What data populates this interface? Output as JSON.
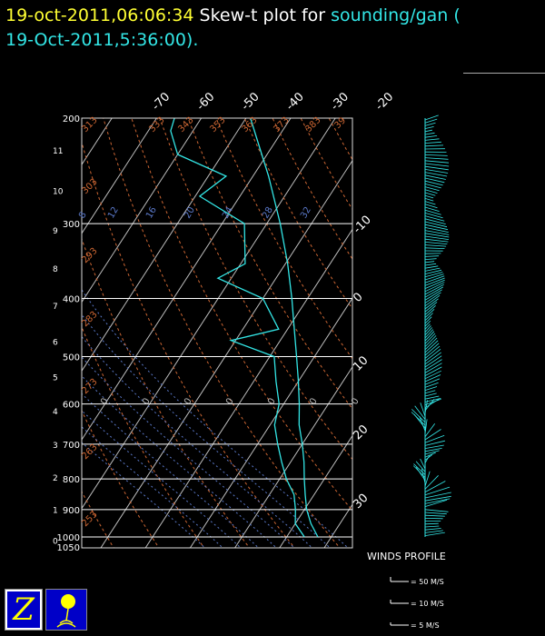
{
  "title": {
    "time": "19-oct-2011,06:06:34",
    "text": "Skew-t plot for",
    "source": "sounding/gan (",
    "date": "19-Oct-2011,5:36:00)",
    "period": "."
  },
  "winds": {
    "header": "WINDS PROFILE",
    "legend": [
      "= 50 M/S",
      "= 10 M/S",
      "= 5 M/S"
    ]
  },
  "logos": {
    "left_letter": "Z"
  },
  "colors": {
    "temperature": "#33e6e6",
    "isotherm": "#bdbdbd",
    "dry_adiabat": "#cc6633",
    "moist_adiabat": "#5a78c8",
    "title_yellow": "#ffff33",
    "title_cyan": "#33e6e6"
  },
  "chart_data": {
    "type": "skew-t",
    "pressure_ticks": [
      200,
      300,
      400,
      500,
      600,
      700,
      800,
      900,
      1000,
      1050
    ],
    "pressure_range": [
      1050,
      200
    ],
    "height_ticks_km": [
      0,
      1,
      2,
      3,
      4,
      5,
      6,
      7,
      8,
      9,
      10,
      11
    ],
    "isotherm_labels_top": [
      "-70",
      "-60",
      "-50",
      "-40",
      "-30",
      "-20"
    ],
    "isotherm_labels_right": [
      "-10",
      "0",
      "10",
      "20",
      "30"
    ],
    "dry_adiabat_labels": [
      "313",
      "333",
      "343",
      "353",
      "363",
      "373",
      "383",
      "39",
      "303",
      "293",
      "283",
      "273",
      "263",
      "253"
    ],
    "moist_adiabat_labels": [
      "8",
      "12",
      "16",
      "20",
      "24",
      "28",
      "32"
    ],
    "mixing_ratio_labels": [
      "0",
      "0",
      "0",
      "0",
      "0",
      "0",
      "0"
    ],
    "temperature_profile": [
      {
        "p": 1000,
        "t": 27.0
      },
      {
        "p": 950,
        "t": 23.5
      },
      {
        "p": 900,
        "t": 20.5
      },
      {
        "p": 850,
        "t": 18.0
      },
      {
        "p": 800,
        "t": 15.5
      },
      {
        "p": 750,
        "t": 13.0
      },
      {
        "p": 700,
        "t": 10.0
      },
      {
        "p": 650,
        "t": 6.5
      },
      {
        "p": 600,
        "t": 3.5
      },
      {
        "p": 550,
        "t": 0.0
      },
      {
        "p": 500,
        "t": -4.0
      },
      {
        "p": 450,
        "t": -8.5
      },
      {
        "p": 400,
        "t": -13.5
      },
      {
        "p": 350,
        "t": -19.5
      },
      {
        "p": 300,
        "t": -27.0
      },
      {
        "p": 250,
        "t": -36.5
      },
      {
        "p": 200,
        "t": -49.0
      }
    ],
    "dewpoint_profile": [
      {
        "p": 1000,
        "t": 24.0
      },
      {
        "p": 950,
        "t": 20.0
      },
      {
        "p": 900,
        "t": 18.0
      },
      {
        "p": 850,
        "t": 15.5
      },
      {
        "p": 800,
        "t": 11.5
      },
      {
        "p": 750,
        "t": 8.0
      },
      {
        "p": 700,
        "t": 4.5
      },
      {
        "p": 650,
        "t": 1.0
      },
      {
        "p": 600,
        "t": -1.0
      },
      {
        "p": 550,
        "t": -5.0
      },
      {
        "p": 500,
        "t": -9.0
      },
      {
        "p": 470,
        "t": -21.0
      },
      {
        "p": 450,
        "t": -12.0
      },
      {
        "p": 400,
        "t": -20.0
      },
      {
        "p": 370,
        "t": -33.0
      },
      {
        "p": 350,
        "t": -29.0
      },
      {
        "p": 300,
        "t": -35.0
      },
      {
        "p": 270,
        "t": -49.0
      },
      {
        "p": 250,
        "t": -46.0
      },
      {
        "p": 230,
        "t": -60.0
      },
      {
        "p": 210,
        "t": -65.0
      },
      {
        "p": 200,
        "t": -66.0
      }
    ]
  }
}
